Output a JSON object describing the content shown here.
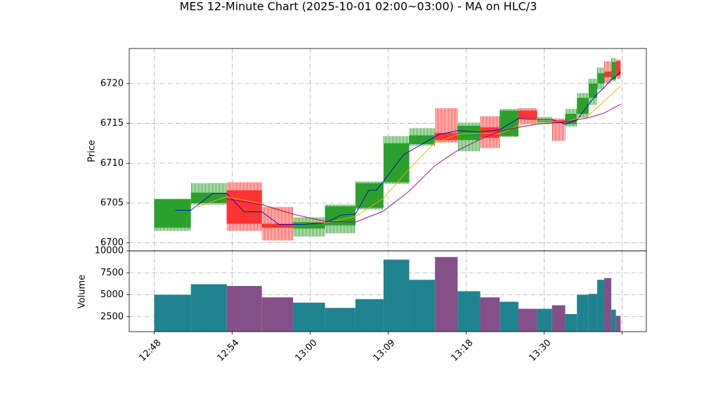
{
  "chart_data": {
    "type": "candlestick",
    "title": "MES 12-Minute Chart (2025-10-01 02:00~03:00) - MA on HLC/3",
    "ylabel": "Price",
    "volume_ylabel": "Volume",
    "up_color": "#2ca02c",
    "down_color": "#ff3333",
    "volume_up_color": "#1f8f6a",
    "volume_down_color": "#a8406e",
    "grid": true,
    "xlim": [
      -3.2,
      63.1
    ],
    "xticks": [
      {
        "value": 0,
        "label": "12:48"
      },
      {
        "value": 10,
        "label": "12:54"
      },
      {
        "value": 20,
        "label": "13:00"
      },
      {
        "value": 30,
        "label": "13:09"
      },
      {
        "value": 40,
        "label": "13:18"
      },
      {
        "value": 50,
        "label": "13:30"
      },
      {
        "value": 60,
        "label": null
      }
    ],
    "ylim": [
      6699.0,
      6724.4
    ],
    "yticks": [
      6700,
      6705,
      6710,
      6715,
      6720
    ],
    "volume_ylim": [
      800,
      10000
    ],
    "volume_yticks": [
      2500,
      5000,
      7500,
      10000
    ],
    "x_start": [
      0,
      4.7,
      9.3,
      13.8,
      17.8,
      21.9,
      25.8,
      29.4,
      32.7,
      36.0,
      38.9,
      41.8,
      44.3,
      46.7,
      49.1,
      51.0,
      52.7,
      54.2,
      55.7,
      56.8,
      57.7,
      58.6,
      59.2
    ],
    "x_end": [
      4.7,
      9.3,
      13.8,
      17.8,
      21.9,
      25.8,
      29.4,
      32.7,
      36.0,
      38.9,
      41.8,
      44.3,
      46.7,
      49.1,
      51.0,
      52.7,
      54.2,
      55.7,
      56.8,
      57.7,
      58.6,
      59.2,
      59.8
    ],
    "open": [
      6701.9,
      6705.0,
      6706.6,
      6702.4,
      6701.8,
      6702.2,
      6704.4,
      6707.6,
      6712.4,
      6713.8,
      6712.9,
      6714.5,
      6713.4,
      6716.6,
      6715.2,
      6715.4,
      6714.9,
      6716.2,
      6718.2,
      6720.0,
      6721.5,
      6720.5,
      6722.8
    ],
    "high": [
      6705.5,
      6707.5,
      6707.6,
      6704.5,
      6703.2,
      6704.8,
      6707.7,
      6713.4,
      6714.4,
      6716.9,
      6715.1,
      6715.9,
      6716.8,
      6716.9,
      6715.8,
      6715.6,
      6716.8,
      6718.8,
      6720.6,
      6722.0,
      6722.8,
      6723.2,
      6723.0
    ],
    "low": [
      6701.5,
      6704.8,
      6701.5,
      6700.3,
      6700.8,
      6701.2,
      6704.2,
      6707.4,
      6712.2,
      6712.6,
      6711.5,
      6711.9,
      6713.3,
      6714.9,
      6714.9,
      6712.8,
      6714.6,
      6715.7,
      6717.3,
      6719.3,
      6720.0,
      6720.3,
      6720.6
    ],
    "close": [
      6705.5,
      6706.3,
      6702.4,
      6701.9,
      6702.6,
      6704.6,
      6707.5,
      6712.5,
      6713.5,
      6712.9,
      6714.7,
      6713.2,
      6716.6,
      6715.6,
      6715.4,
      6715.0,
      6716.2,
      6718.2,
      6720.0,
      6721.3,
      6720.8,
      6722.7,
      6721.0
    ],
    "volume": [
      5000,
      6200,
      6000,
      4700,
      4100,
      3500,
      4500,
      9000,
      6700,
      9300,
      5400,
      4700,
      4200,
      3400,
      3400,
      3800,
      2800,
      5000,
      5100,
      6700,
      6900,
      3300,
      2600
    ],
    "ma_lines": [
      {
        "color": "#0000cc",
        "x": [
          2.7,
          4.7,
          7.5,
          9.3,
          11.5,
          13.8,
          16,
          19,
          21.9,
          24,
          25.8,
          27.5,
          28.5,
          30,
          32,
          34,
          36.5,
          39,
          41.8,
          44.3,
          46.7,
          49.1,
          51,
          52.7,
          54.2,
          55.7,
          56.8,
          57.7,
          58.6,
          59.2,
          59.8
        ],
        "values": [
          6704.1,
          6704.1,
          6706.2,
          6706.2,
          6703.9,
          6703.9,
          6702.3,
          6702.3,
          6702.5,
          6703.5,
          6703.6,
          6706.6,
          6706.6,
          6708.5,
          6711.1,
          6712.2,
          6713.6,
          6714.1,
          6713.9,
          6714.2,
          6715.6,
          6715.5,
          6715.5,
          6714.9,
          6715.4,
          6717.4,
          6718.7,
          6719.5,
          6720.5,
          6720.9,
          6721.5
        ]
      },
      {
        "color": "#ffa500",
        "x": [
          5.5,
          9.3,
          13.8,
          17.8,
          21.9,
          25.8,
          29.4,
          32.7,
          36,
          38.9,
          41.8,
          44.3,
          46.7,
          49.1,
          52.7,
          55.7,
          57.7,
          59.8
        ],
        "values": [
          6704.5,
          6705.8,
          6704.9,
          6703.1,
          6702.5,
          6703.3,
          6705.6,
          6709.3,
          6712.6,
          6713.6,
          6713.8,
          6713.7,
          6714.7,
          6715.4,
          6715.2,
          6716.0,
          6717.8,
          6719.7
        ]
      },
      {
        "color": "#8b008b",
        "x": [
          9.3,
          13.8,
          17.8,
          21.9,
          25.8,
          29.4,
          32.7,
          36,
          38.9,
          41.8,
          44.3,
          46.7,
          49.1,
          52.7,
          55.7,
          57.7,
          59.8
        ],
        "values": [
          6705.5,
          6704.8,
          6703.6,
          6702.7,
          6702.6,
          6704.0,
          6706.5,
          6709.7,
          6711.6,
          6713.0,
          6714.0,
          6714.5,
          6714.9,
          6715.2,
          6715.7,
          6716.3,
          6717.4
        ]
      }
    ]
  }
}
